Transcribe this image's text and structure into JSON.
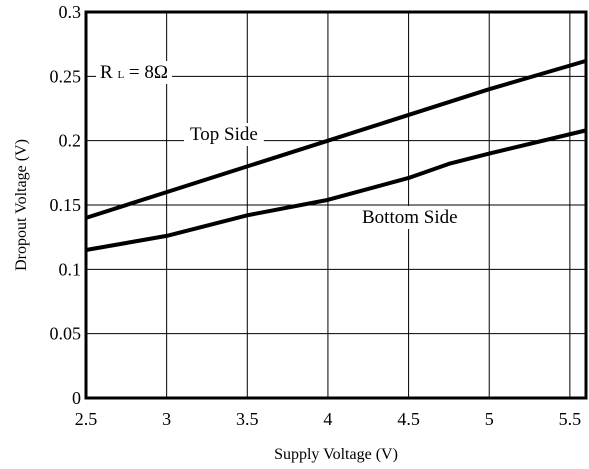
{
  "chart_data": {
    "type": "line",
    "title": "",
    "xlabel": "Supply Voltage (V)",
    "ylabel": "Dropout Voltage (V)",
    "xlim": [
      2.5,
      5.6
    ],
    "ylim": [
      0,
      0.3
    ],
    "x_ticks": [
      2.5,
      3,
      3.5,
      4,
      4.5,
      5,
      5.5
    ],
    "x_tick_labels": [
      "2.5",
      "3",
      "3.5",
      "4",
      "4.5",
      "5",
      "5.5"
    ],
    "y_ticks": [
      0,
      0.05,
      0.1,
      0.15,
      0.2,
      0.25,
      0.3
    ],
    "y_tick_labels": [
      "0",
      "0.05",
      "0.1",
      "0.15",
      "0.2",
      "0.25",
      "0.3"
    ],
    "grid": true,
    "series": [
      {
        "name": "Top Side",
        "x": [
          2.5,
          3.0,
          3.5,
          4.0,
          4.5,
          5.0,
          5.6
        ],
        "y": [
          0.14,
          0.16,
          0.18,
          0.2,
          0.22,
          0.24,
          0.262
        ]
      },
      {
        "name": "Bottom Side",
        "x": [
          2.5,
          3.0,
          3.5,
          4.0,
          4.5,
          4.75,
          5.0,
          5.6
        ],
        "y": [
          0.115,
          0.126,
          0.142,
          0.154,
          0.171,
          0.182,
          0.19,
          0.208
        ]
      }
    ],
    "annotations": {
      "rl_main": "R",
      "rl_sub": "L",
      "rl_value": " = 8Ω"
    }
  }
}
